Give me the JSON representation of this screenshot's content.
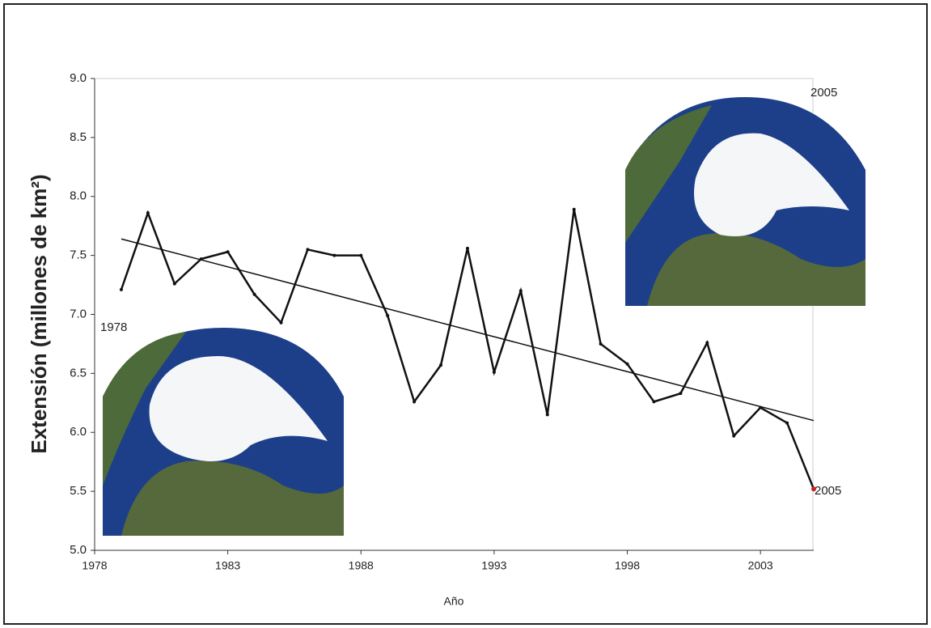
{
  "chart_data": {
    "type": "line",
    "y_label": "Extensión (millones de km²)",
    "x_label": "Año",
    "x": [
      1979,
      1980,
      1981,
      1982,
      1983,
      1984,
      1985,
      1986,
      1987,
      1988,
      1989,
      1990,
      1991,
      1992,
      1993,
      1994,
      1995,
      1996,
      1997,
      1998,
      1999,
      2000,
      2001,
      2002,
      2003,
      2004,
      2005
    ],
    "series": [
      {
        "color": "#111111",
        "last_point_color": "#cc2222",
        "values": [
          7.21,
          7.86,
          7.26,
          7.47,
          7.53,
          7.17,
          6.93,
          7.55,
          7.5,
          7.5,
          6.99,
          6.26,
          6.57,
          7.56,
          6.51,
          7.2,
          6.15,
          7.89,
          6.75,
          6.58,
          6.26,
          6.33,
          6.76,
          5.97,
          6.21,
          6.08,
          5.52
        ]
      }
    ],
    "trendline": {
      "x": [
        1979,
        2005
      ],
      "values": [
        7.64,
        6.1
      ],
      "color": "#111111"
    },
    "xlim": [
      1978,
      2005
    ],
    "xticks": [
      1978,
      1983,
      1988,
      1993,
      1998,
      2003
    ],
    "ylim": [
      5,
      9
    ],
    "yticks": [
      {
        "value": 5,
        "label": "5.0"
      },
      {
        "value": 5.5,
        "label": "5.5"
      },
      {
        "value": 6,
        "label": "6.0"
      },
      {
        "value": 6.5,
        "label": "6.5"
      },
      {
        "value": 7,
        "label": "7.0"
      },
      {
        "value": 7.5,
        "label": "7.5"
      },
      {
        "value": 8,
        "label": "8.0"
      },
      {
        "value": 8.5,
        "label": "8.5"
      },
      {
        "value": 9,
        "label": "9.0"
      }
    ],
    "annotations": [
      "1978",
      "2005",
      "2005"
    ]
  }
}
